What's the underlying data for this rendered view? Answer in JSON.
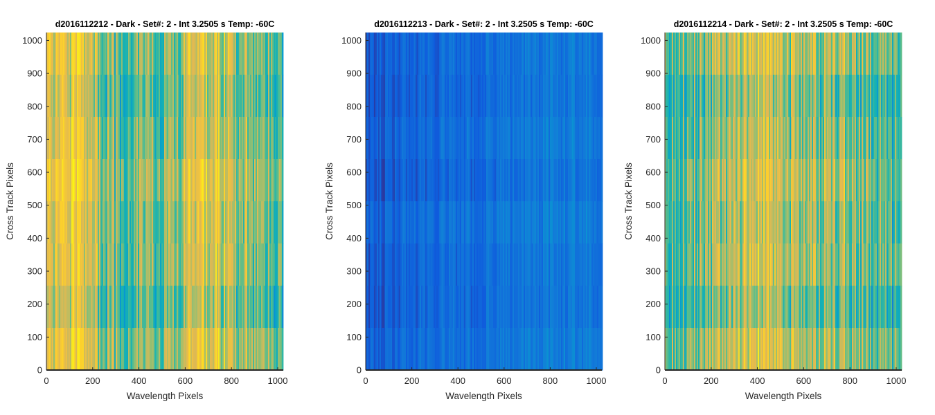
{
  "chart_data": [
    {
      "type": "heatmap",
      "title": "d2016112212 - Dark - Set#: 2 - Int 3.2505 s Temp: -60C",
      "xlabel": "Wavelength Pixels",
      "ylabel": "Cross Track Pixels",
      "xlim": [
        0,
        1024
      ],
      "ylim": [
        0,
        1024
      ],
      "xticks": [
        0,
        200,
        400,
        600,
        800,
        1000
      ],
      "yticks": [
        0,
        100,
        200,
        300,
        400,
        500,
        600,
        700,
        800,
        900,
        1000
      ],
      "colormap": "parula",
      "base_color": "#1a9ad6",
      "column_profile": [
        {
          "x": 0,
          "level": 0.62
        },
        {
          "x": 60,
          "level": 0.68
        },
        {
          "x": 120,
          "level": 0.72
        },
        {
          "x": 200,
          "level": 0.62
        },
        {
          "x": 300,
          "level": 0.5
        },
        {
          "x": 400,
          "level": 0.46
        },
        {
          "x": 500,
          "level": 0.52
        },
        {
          "x": 600,
          "level": 0.6
        },
        {
          "x": 700,
          "level": 0.7
        },
        {
          "x": 760,
          "level": 0.66
        },
        {
          "x": 850,
          "level": 0.55
        },
        {
          "x": 950,
          "level": 0.48
        },
        {
          "x": 1024,
          "level": 0.42
        }
      ]
    },
    {
      "type": "heatmap",
      "title": "d2016112213 - Dark - Set#: 2 - Int 3.2505 s Temp: -60C",
      "xlabel": "Wavelength Pixels",
      "ylabel": "Cross Track Pixels",
      "xlim": [
        0,
        1024
      ],
      "ylim": [
        0,
        1024
      ],
      "xticks": [
        0,
        200,
        400,
        600,
        800,
        1000
      ],
      "yticks": [
        0,
        100,
        200,
        300,
        400,
        500,
        600,
        700,
        800,
        900,
        1000
      ],
      "colormap": "parula",
      "base_color": "#2d45c4",
      "column_profile": [
        {
          "x": 0,
          "level": 0.1
        },
        {
          "x": 200,
          "level": 0.13
        },
        {
          "x": 400,
          "level": 0.15
        },
        {
          "x": 600,
          "level": 0.16
        },
        {
          "x": 800,
          "level": 0.19
        },
        {
          "x": 900,
          "level": 0.2
        },
        {
          "x": 1024,
          "level": 0.18
        }
      ]
    },
    {
      "type": "heatmap",
      "title": "d2016112214 - Dark - Set#: 2 - Int 3.2505 s Temp: -60C",
      "xlabel": "Wavelength Pixels",
      "ylabel": "Cross Track Pixels",
      "xlim": [
        0,
        1024
      ],
      "ylim": [
        0,
        1024
      ],
      "xticks": [
        0,
        200,
        400,
        600,
        800,
        1000
      ],
      "yticks": [
        0,
        100,
        200,
        300,
        400,
        500,
        600,
        700,
        800,
        900,
        1000
      ],
      "colormap": "parula",
      "base_color": "#1a9ad6",
      "column_profile": [
        {
          "x": 0,
          "level": 0.48
        },
        {
          "x": 100,
          "level": 0.5
        },
        {
          "x": 200,
          "level": 0.52
        },
        {
          "x": 300,
          "level": 0.6
        },
        {
          "x": 400,
          "level": 0.68
        },
        {
          "x": 500,
          "level": 0.62
        },
        {
          "x": 600,
          "level": 0.52
        },
        {
          "x": 700,
          "level": 0.55
        },
        {
          "x": 780,
          "level": 0.6
        },
        {
          "x": 880,
          "level": 0.5
        },
        {
          "x": 1024,
          "level": 0.42
        }
      ]
    }
  ]
}
